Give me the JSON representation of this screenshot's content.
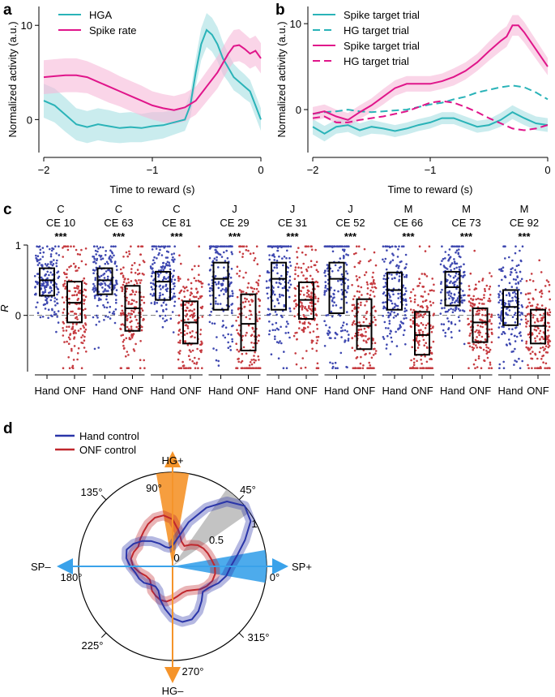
{
  "panels": {
    "a": "a",
    "b": "b",
    "c": "c",
    "d": "d"
  },
  "chart_data": [
    {
      "id": "a",
      "type": "line",
      "xlabel": "Time to reward (s)",
      "ylabel": "Normalized activity (a.u.)",
      "xlim": [
        -2,
        0
      ],
      "ylim": [
        -3.5,
        12
      ],
      "xticks": [
        -2,
        -1,
        0
      ],
      "yticks": [
        0,
        10
      ],
      "series": [
        {
          "name": "HGA",
          "color": "#2ab3b8",
          "band_color": "#a7dfe3",
          "x": [
            -2,
            -1.9,
            -1.8,
            -1.7,
            -1.6,
            -1.5,
            -1.4,
            -1.3,
            -1.2,
            -1.1,
            -1.0,
            -0.9,
            -0.8,
            -0.7,
            -0.65,
            -0.6,
            -0.55,
            -0.5,
            -0.45,
            -0.4,
            -0.35,
            -0.3,
            -0.25,
            -0.2,
            -0.15,
            -0.1,
            -0.05,
            0
          ],
          "y": [
            2,
            1.5,
            0.5,
            -0.5,
            -0.8,
            -0.5,
            -0.7,
            -0.9,
            -0.8,
            -0.9,
            -0.7,
            -0.6,
            -0.3,
            0,
            1.5,
            5,
            8,
            9.5,
            9,
            8,
            6.5,
            5.5,
            4.5,
            4,
            3.5,
            3,
            1.5,
            0
          ],
          "err": [
            1.8,
            1.8,
            1.8,
            1.7,
            1.7,
            1.7,
            1.7,
            1.6,
            1.6,
            1.5,
            1.5,
            1.4,
            1.3,
            1.2,
            1.3,
            1.5,
            1.7,
            1.8,
            1.8,
            1.8,
            1.7,
            1.5,
            1.4,
            1.3,
            1.3,
            1.2,
            1.2,
            1.2
          ]
        },
        {
          "name": "Spike rate",
          "color": "#e0158a",
          "band_color": "#f7b9d9",
          "x": [
            -2,
            -1.9,
            -1.8,
            -1.7,
            -1.6,
            -1.5,
            -1.4,
            -1.3,
            -1.2,
            -1.1,
            -1.0,
            -0.9,
            -0.8,
            -0.7,
            -0.6,
            -0.5,
            -0.4,
            -0.35,
            -0.3,
            -0.25,
            -0.2,
            -0.15,
            -0.1,
            -0.05,
            0
          ],
          "y": [
            4.5,
            4.6,
            4.7,
            4.7,
            4.5,
            4.0,
            3.5,
            3.0,
            2.5,
            2.0,
            1.5,
            1.2,
            1.0,
            1.3,
            2.0,
            3.5,
            5.0,
            6.0,
            7.0,
            7.8,
            7.9,
            7.5,
            7.0,
            7.3,
            6.5
          ],
          "err": [
            1.8,
            1.8,
            1.8,
            1.8,
            1.7,
            1.7,
            1.7,
            1.6,
            1.6,
            1.6,
            1.5,
            1.5,
            1.5,
            1.5,
            1.5,
            1.6,
            1.7,
            1.7,
            1.7,
            1.7,
            1.7,
            1.6,
            1.6,
            1.6,
            1.6
          ]
        }
      ]
    },
    {
      "id": "b",
      "type": "line",
      "xlabel": "Time to reward (s)",
      "ylabel": "Normalized activity (a.u.)",
      "xlim": [
        -2,
        0
      ],
      "ylim": [
        -5,
        12
      ],
      "xticks": [
        -2,
        -1,
        0
      ],
      "yticks": [
        0,
        10
      ],
      "series": [
        {
          "name": "Spike target trial",
          "color": "#2ab3b8",
          "dash": false,
          "band_color": "#a7dfe3",
          "x": [
            -2,
            -1.9,
            -1.8,
            -1.7,
            -1.6,
            -1.5,
            -1.4,
            -1.3,
            -1.2,
            -1.1,
            -1.0,
            -0.9,
            -0.8,
            -0.7,
            -0.6,
            -0.5,
            -0.4,
            -0.3,
            -0.2,
            -0.1,
            0
          ],
          "y": [
            -2,
            -2.8,
            -2.0,
            -1.8,
            -2.4,
            -2.0,
            -2.2,
            -2.5,
            -2.2,
            -1.8,
            -1.5,
            -1.0,
            -1.0,
            -1.5,
            -2.0,
            -1.8,
            -1.2,
            -0.3,
            -1.0,
            -1.6,
            -1.8
          ],
          "err": [
            0.9,
            0.9,
            0.8,
            0.8,
            0.8,
            0.8,
            0.7,
            0.7,
            0.7,
            0.7,
            0.7,
            0.7,
            0.7,
            0.7,
            0.7,
            0.7,
            0.8,
            0.8,
            0.8,
            0.8,
            0.8
          ]
        },
        {
          "name": "HG target trial",
          "color": "#2ab3b8",
          "dash": true,
          "x": [
            -2,
            -1.9,
            -1.8,
            -1.7,
            -1.6,
            -1.5,
            -1.4,
            -1.3,
            -1.2,
            -1.1,
            -1.0,
            -0.9,
            -0.8,
            -0.7,
            -0.6,
            -0.5,
            -0.4,
            -0.3,
            -0.2,
            -0.1,
            0
          ],
          "y": [
            -0.5,
            -0.3,
            -0.2,
            0,
            -0.2,
            -0.3,
            -0.2,
            -0.1,
            0,
            0.3,
            0.6,
            0.8,
            1.2,
            1.5,
            2.0,
            2.3,
            2.6,
            2.8,
            2.6,
            2.0,
            1.2
          ]
        },
        {
          "name": "Spike target trial",
          "color": "#e0158a",
          "dash": false,
          "band_color": "#f7b9d9",
          "x": [
            -2,
            -1.9,
            -1.8,
            -1.7,
            -1.6,
            -1.5,
            -1.4,
            -1.3,
            -1.2,
            -1.1,
            -1.0,
            -0.9,
            -0.8,
            -0.7,
            -0.6,
            -0.5,
            -0.4,
            -0.35,
            -0.3,
            -0.25,
            -0.2,
            -0.1,
            0
          ],
          "y": [
            -0.5,
            -0.2,
            -0.8,
            -1.2,
            -0.3,
            0.5,
            1.5,
            2.5,
            3.0,
            3.0,
            3.0,
            3.3,
            3.8,
            4.5,
            5.5,
            6.8,
            8.0,
            8.5,
            9.8,
            9.8,
            9.0,
            7.0,
            5.0
          ],
          "err": [
            0.8,
            0.8,
            0.8,
            0.8,
            0.8,
            0.8,
            0.9,
            0.9,
            0.9,
            0.9,
            0.9,
            0.9,
            1.0,
            1.0,
            1.0,
            1.1,
            1.2,
            1.2,
            1.2,
            1.2,
            1.2,
            1.1,
            1.0
          ]
        },
        {
          "name": "HG target trial",
          "color": "#e0158a",
          "dash": true,
          "x": [
            -2,
            -1.9,
            -1.8,
            -1.7,
            -1.6,
            -1.5,
            -1.4,
            -1.3,
            -1.2,
            -1.1,
            -1.0,
            -0.9,
            -0.8,
            -0.7,
            -0.6,
            -0.5,
            -0.4,
            -0.3,
            -0.2,
            -0.1,
            0
          ],
          "y": [
            -1.0,
            -0.8,
            -1.5,
            -1.5,
            -1.2,
            -1.0,
            -0.8,
            -0.5,
            -0.2,
            0.3,
            0.8,
            1.0,
            0.8,
            0.3,
            -0.3,
            -1.0,
            -1.6,
            -2.2,
            -2.4,
            -2.2,
            -1.8
          ]
        }
      ]
    },
    {
      "id": "c",
      "type": "box",
      "ylabel": "R",
      "ylim": [
        -0.8,
        1.0
      ],
      "yticks": [
        0,
        1
      ],
      "xlabels": [
        "Hand",
        "ONF"
      ],
      "hand_color": "#2a35a8",
      "onf_color": "#c0272d",
      "groups": [
        {
          "monkey": "C",
          "ce": "CE 10",
          "sig": "***",
          "hand": {
            "q1": 0.28,
            "med": 0.5,
            "q3": 0.67
          },
          "onf": {
            "q1": -0.1,
            "med": 0.18,
            "q3": 0.48
          }
        },
        {
          "monkey": "C",
          "ce": "CE 63",
          "sig": "***",
          "hand": {
            "q1": 0.3,
            "med": 0.5,
            "q3": 0.67
          },
          "onf": {
            "q1": -0.22,
            "med": 0.1,
            "q3": 0.42
          }
        },
        {
          "monkey": "C",
          "ce": "CE 81",
          "sig": "***",
          "hand": {
            "q1": 0.22,
            "med": 0.48,
            "q3": 0.62
          },
          "onf": {
            "q1": -0.4,
            "med": -0.1,
            "q3": 0.2
          }
        },
        {
          "monkey": "J",
          "ce": "CE 29",
          "sig": "***",
          "hand": {
            "q1": 0.08,
            "med": 0.52,
            "q3": 0.75
          },
          "onf": {
            "q1": -0.5,
            "med": -0.12,
            "q3": 0.3
          }
        },
        {
          "monkey": "J",
          "ce": "CE 31",
          "sig": "***",
          "hand": {
            "q1": 0.08,
            "med": 0.52,
            "q3": 0.75
          },
          "onf": {
            "q1": -0.05,
            "med": 0.22,
            "q3": 0.47
          }
        },
        {
          "monkey": "J",
          "ce": "CE 52",
          "sig": "***",
          "hand": {
            "q1": 0.03,
            "med": 0.52,
            "q3": 0.75
          },
          "onf": {
            "q1": -0.48,
            "med": -0.15,
            "q3": 0.23
          }
        },
        {
          "monkey": "M",
          "ce": "CE 66",
          "sig": "***",
          "hand": {
            "q1": 0.08,
            "med": 0.36,
            "q3": 0.61
          },
          "onf": {
            "q1": -0.56,
            "med": -0.28,
            "q3": 0.05
          }
        },
        {
          "monkey": "M",
          "ce": "CE 73",
          "sig": "***",
          "hand": {
            "q1": 0.14,
            "med": 0.4,
            "q3": 0.62
          },
          "onf": {
            "q1": -0.38,
            "med": -0.1,
            "q3": 0.1
          }
        },
        {
          "monkey": "M",
          "ce": "CE 92",
          "sig": "***",
          "hand": {
            "q1": -0.14,
            "med": 0.12,
            "q3": 0.36
          },
          "onf": {
            "q1": -0.4,
            "med": -0.15,
            "q3": 0.08
          }
        }
      ]
    },
    {
      "id": "d",
      "type": "polar",
      "legend": [
        {
          "name": "Hand control",
          "color": "#2a35a8"
        },
        {
          "name": "ONF control",
          "color": "#c0272d"
        }
      ],
      "axis_labels": {
        "top": "HG+",
        "bottom": "HG–",
        "left": "SP–",
        "right": "SP+"
      },
      "angle_labels": [
        "0°",
        "45°",
        "90°",
        "135°",
        "180°",
        "225°",
        "270°",
        "315°"
      ],
      "radial_ticks": [
        "0",
        "0.5",
        "1"
      ],
      "hg_wedge": {
        "color": "#f5942a",
        "from_deg": 80,
        "to_deg": 100
      },
      "sp_wedge": {
        "color": "#3aa2ea",
        "from_deg": -10,
        "to_deg": 10
      },
      "gray_wedge": {
        "color": "#bdbdbd",
        "from_deg": 35,
        "to_deg": 55
      },
      "hand_r": [
        0.62,
        0.7,
        0.82,
        0.96,
        1.0,
        0.9,
        0.72,
        0.5,
        0.3,
        0.22,
        0.2,
        0.22,
        0.28,
        0.35,
        0.42,
        0.48,
        0.52,
        0.5,
        0.45,
        0.4,
        0.38,
        0.35,
        0.3,
        0.28,
        0.3,
        0.38,
        0.46,
        0.55,
        0.6,
        0.6,
        0.55,
        0.48,
        0.42,
        0.45,
        0.52,
        0.58
      ],
      "onf_r": [
        0.45,
        0.42,
        0.4,
        0.38,
        0.35,
        0.3,
        0.25,
        0.28,
        0.38,
        0.5,
        0.55,
        0.55,
        0.52,
        0.48,
        0.45,
        0.42,
        0.44,
        0.45,
        0.42,
        0.36,
        0.3,
        0.28,
        0.3,
        0.34,
        0.36,
        0.38,
        0.38,
        0.35,
        0.32,
        0.3,
        0.3,
        0.33,
        0.38,
        0.42,
        0.45,
        0.46
      ]
    }
  ]
}
